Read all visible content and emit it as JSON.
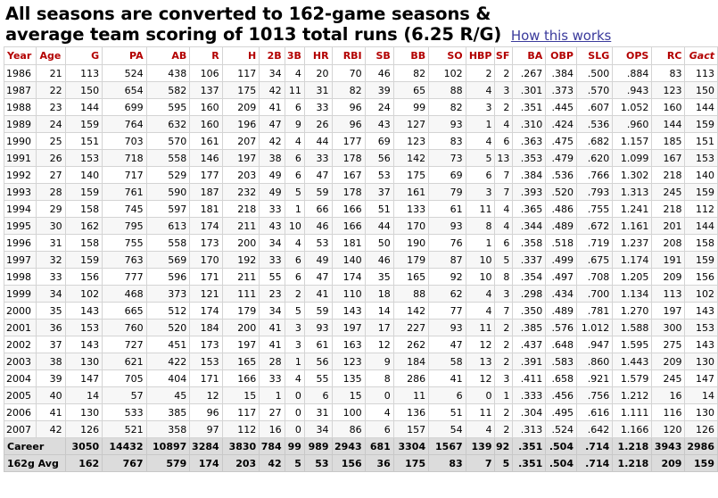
{
  "header": {
    "line1": "All seasons are converted to 162-game seasons &",
    "line2": "average team scoring of 1013 total runs (6.25 R/G)",
    "link_label": "How this works"
  },
  "table": {
    "columns": [
      "Year",
      "Age",
      "G",
      "PA",
      "AB",
      "R",
      "H",
      "2B",
      "3B",
      "HR",
      "RBI",
      "SB",
      "BB",
      "SO",
      "HBP",
      "SF",
      "BA",
      "OBP",
      "SLG",
      "OPS",
      "RC",
      "Gact"
    ],
    "rows": [
      [
        "1986",
        "21",
        "113",
        "524",
        "438",
        "106",
        "117",
        "34",
        "4",
        "20",
        "70",
        "46",
        "82",
        "102",
        "2",
        "2",
        ".267",
        ".384",
        ".500",
        ".884",
        "83",
        "113"
      ],
      [
        "1987",
        "22",
        "150",
        "654",
        "582",
        "137",
        "175",
        "42",
        "11",
        "31",
        "82",
        "39",
        "65",
        "88",
        "4",
        "3",
        ".301",
        ".373",
        ".570",
        ".943",
        "123",
        "150"
      ],
      [
        "1988",
        "23",
        "144",
        "699",
        "595",
        "160",
        "209",
        "41",
        "6",
        "33",
        "96",
        "24",
        "99",
        "82",
        "3",
        "2",
        ".351",
        ".445",
        ".607",
        "1.052",
        "160",
        "144"
      ],
      [
        "1989",
        "24",
        "159",
        "764",
        "632",
        "160",
        "196",
        "47",
        "9",
        "26",
        "96",
        "43",
        "127",
        "93",
        "1",
        "4",
        ".310",
        ".424",
        ".536",
        ".960",
        "144",
        "159"
      ],
      [
        "1990",
        "25",
        "151",
        "703",
        "570",
        "161",
        "207",
        "42",
        "4",
        "44",
        "177",
        "69",
        "123",
        "83",
        "4",
        "6",
        ".363",
        ".475",
        ".682",
        "1.157",
        "185",
        "151"
      ],
      [
        "1991",
        "26",
        "153",
        "718",
        "558",
        "146",
        "197",
        "38",
        "6",
        "33",
        "178",
        "56",
        "142",
        "73",
        "5",
        "13",
        ".353",
        ".479",
        ".620",
        "1.099",
        "167",
        "153"
      ],
      [
        "1992",
        "27",
        "140",
        "717",
        "529",
        "177",
        "203",
        "49",
        "6",
        "47",
        "167",
        "53",
        "175",
        "69",
        "6",
        "7",
        ".384",
        ".536",
        ".766",
        "1.302",
        "218",
        "140"
      ],
      [
        "1993",
        "28",
        "159",
        "761",
        "590",
        "187",
        "232",
        "49",
        "5",
        "59",
        "178",
        "37",
        "161",
        "79",
        "3",
        "7",
        ".393",
        ".520",
        ".793",
        "1.313",
        "245",
        "159"
      ],
      [
        "1994",
        "29",
        "158",
        "745",
        "597",
        "181",
        "218",
        "33",
        "1",
        "66",
        "166",
        "51",
        "133",
        "61",
        "11",
        "4",
        ".365",
        ".486",
        ".755",
        "1.241",
        "218",
        "112"
      ],
      [
        "1995",
        "30",
        "162",
        "795",
        "613",
        "174",
        "211",
        "43",
        "10",
        "46",
        "166",
        "44",
        "170",
        "93",
        "8",
        "4",
        ".344",
        ".489",
        ".672",
        "1.161",
        "201",
        "144"
      ],
      [
        "1996",
        "31",
        "158",
        "755",
        "558",
        "173",
        "200",
        "34",
        "4",
        "53",
        "181",
        "50",
        "190",
        "76",
        "1",
        "6",
        ".358",
        ".518",
        ".719",
        "1.237",
        "208",
        "158"
      ],
      [
        "1997",
        "32",
        "159",
        "763",
        "569",
        "170",
        "192",
        "33",
        "6",
        "49",
        "140",
        "46",
        "179",
        "87",
        "10",
        "5",
        ".337",
        ".499",
        ".675",
        "1.174",
        "191",
        "159"
      ],
      [
        "1998",
        "33",
        "156",
        "777",
        "596",
        "171",
        "211",
        "55",
        "6",
        "47",
        "174",
        "35",
        "165",
        "92",
        "10",
        "8",
        ".354",
        ".497",
        ".708",
        "1.205",
        "209",
        "156"
      ],
      [
        "1999",
        "34",
        "102",
        "468",
        "373",
        "121",
        "111",
        "23",
        "2",
        "41",
        "110",
        "18",
        "88",
        "62",
        "4",
        "3",
        ".298",
        ".434",
        ".700",
        "1.134",
        "113",
        "102"
      ],
      [
        "2000",
        "35",
        "143",
        "665",
        "512",
        "174",
        "179",
        "34",
        "5",
        "59",
        "143",
        "14",
        "142",
        "77",
        "4",
        "7",
        ".350",
        ".489",
        ".781",
        "1.270",
        "197",
        "143"
      ],
      [
        "2001",
        "36",
        "153",
        "760",
        "520",
        "184",
        "200",
        "41",
        "3",
        "93",
        "197",
        "17",
        "227",
        "93",
        "11",
        "2",
        ".385",
        ".576",
        "1.012",
        "1.588",
        "300",
        "153"
      ],
      [
        "2002",
        "37",
        "143",
        "727",
        "451",
        "173",
        "197",
        "41",
        "3",
        "61",
        "163",
        "12",
        "262",
        "47",
        "12",
        "2",
        ".437",
        ".648",
        ".947",
        "1.595",
        "275",
        "143"
      ],
      [
        "2003",
        "38",
        "130",
        "621",
        "422",
        "153",
        "165",
        "28",
        "1",
        "56",
        "123",
        "9",
        "184",
        "58",
        "13",
        "2",
        ".391",
        ".583",
        ".860",
        "1.443",
        "209",
        "130"
      ],
      [
        "2004",
        "39",
        "147",
        "705",
        "404",
        "171",
        "166",
        "33",
        "4",
        "55",
        "135",
        "8",
        "286",
        "41",
        "12",
        "3",
        ".411",
        ".658",
        ".921",
        "1.579",
        "245",
        "147"
      ],
      [
        "2005",
        "40",
        "14",
        "57",
        "45",
        "12",
        "15",
        "1",
        "0",
        "6",
        "15",
        "0",
        "11",
        "6",
        "0",
        "1",
        ".333",
        ".456",
        ".756",
        "1.212",
        "16",
        "14"
      ],
      [
        "2006",
        "41",
        "130",
        "533",
        "385",
        "96",
        "117",
        "27",
        "0",
        "31",
        "100",
        "4",
        "136",
        "51",
        "11",
        "2",
        ".304",
        ".495",
        ".616",
        "1.111",
        "116",
        "130"
      ],
      [
        "2007",
        "42",
        "126",
        "521",
        "358",
        "97",
        "112",
        "16",
        "0",
        "34",
        "86",
        "6",
        "157",
        "54",
        "4",
        "2",
        ".313",
        ".524",
        ".642",
        "1.166",
        "120",
        "126"
      ]
    ],
    "footer": [
      [
        "Career",
        "",
        "3050",
        "14432",
        "10897",
        "3284",
        "3830",
        "784",
        "99",
        "989",
        "2943",
        "681",
        "3304",
        "1567",
        "139",
        "92",
        ".351",
        ".504",
        ".714",
        "1.218",
        "3943",
        "2986"
      ],
      [
        "162g Avg",
        "",
        "162",
        "767",
        "579",
        "174",
        "203",
        "42",
        "5",
        "53",
        "156",
        "36",
        "175",
        "83",
        "7",
        "5",
        ".351",
        ".504",
        ".714",
        "1.218",
        "209",
        "159"
      ]
    ]
  }
}
